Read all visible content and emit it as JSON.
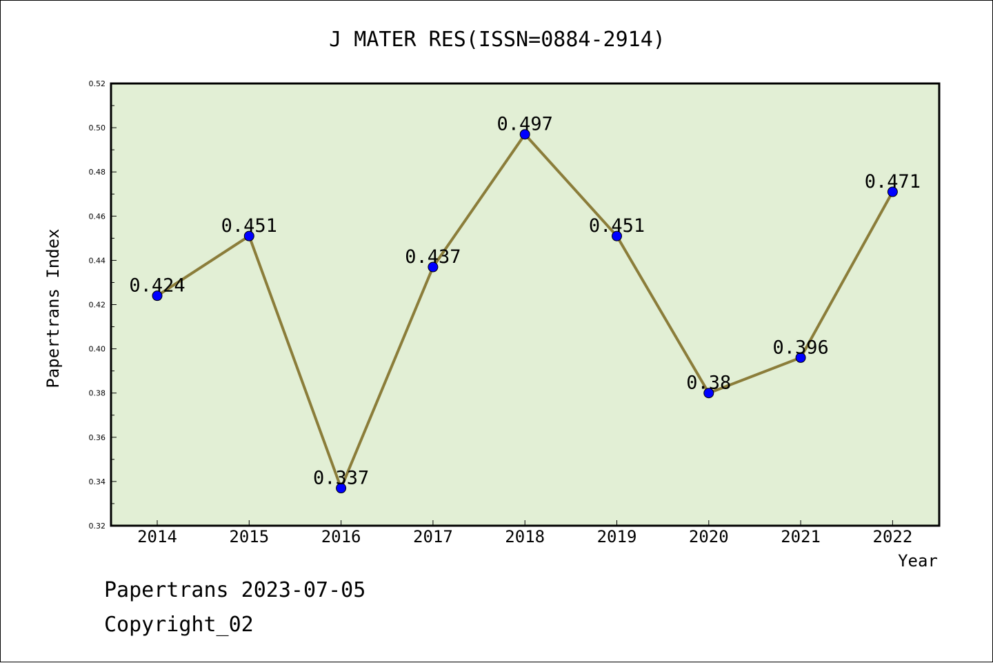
{
  "chart_data": {
    "type": "line",
    "title": "J MATER RES(ISSN=0884-2914)",
    "xlabel": "Year",
    "ylabel": "Papertrans Index",
    "categories": [
      "2014",
      "2015",
      "2016",
      "2017",
      "2018",
      "2019",
      "2020",
      "2021",
      "2022"
    ],
    "series": [
      {
        "name": "Papertrans Index",
        "values": [
          0.424,
          0.451,
          0.337,
          0.437,
          0.497,
          0.451,
          0.38,
          0.396,
          0.471
        ],
        "labels": [
          "0.424",
          "0.451",
          "0.337",
          "0.437",
          "0.497",
          "0.451",
          "0.38",
          "0.396",
          "0.471"
        ]
      }
    ],
    "ylim": [
      0.32,
      0.52
    ],
    "yticks": [
      "0.32",
      "0.34",
      "0.36",
      "0.38",
      "0.40",
      "0.42",
      "0.44",
      "0.46",
      "0.48",
      "0.50",
      "0.52"
    ],
    "grid": false,
    "colors": {
      "plot_background": "#e2efd5",
      "line": "#8b7d3a",
      "marker": "#0000ff"
    }
  },
  "footer": {
    "line1": "Papertrans 2023-07-05",
    "line2": "Copyright_02"
  }
}
